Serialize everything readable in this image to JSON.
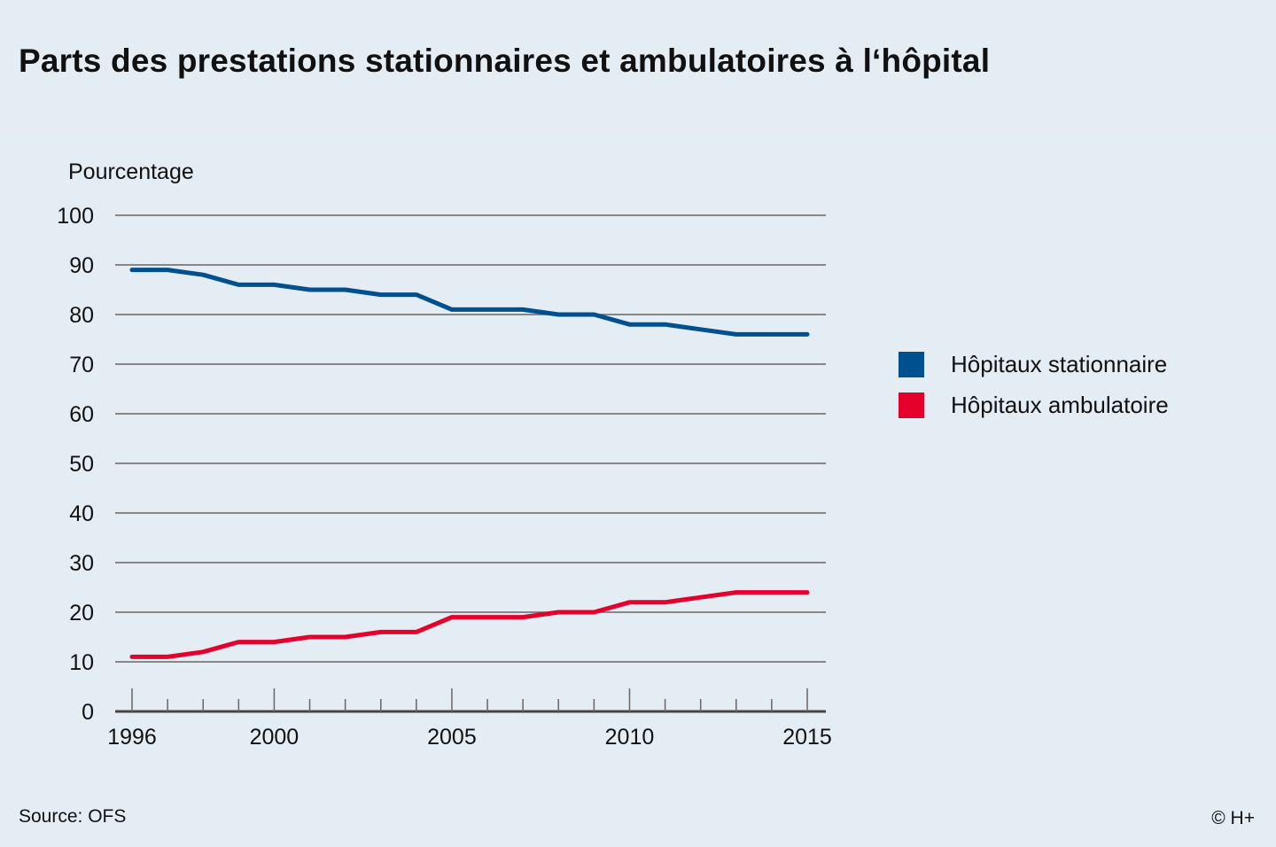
{
  "chart_data": {
    "type": "line",
    "title": "Parts des prestations stationnaires et ambulatoires à l‘hôpital",
    "ylabel": "Pourcentage",
    "xlabel": "",
    "ylim": [
      0,
      100
    ],
    "yticks": [
      0,
      10,
      20,
      30,
      40,
      50,
      60,
      70,
      80,
      90,
      100
    ],
    "xticks": [
      1996,
      2000,
      2005,
      2010,
      2015
    ],
    "grid": true,
    "legend_position": "right",
    "x": [
      1996,
      1997,
      1998,
      1999,
      2000,
      2001,
      2002,
      2003,
      2004,
      2005,
      2006,
      2007,
      2008,
      2009,
      2010,
      2011,
      2012,
      2013,
      2014,
      2015
    ],
    "series": [
      {
        "name": "Hôpitaux stationnaire",
        "color": "#00508f",
        "values": [
          89,
          89,
          88,
          86,
          86,
          85,
          85,
          84,
          84,
          81,
          81,
          81,
          80,
          80,
          78,
          78,
          77,
          76,
          76,
          76
        ]
      },
      {
        "name": "Hôpitaux ambulatoire",
        "color": "#e4002b",
        "values": [
          11,
          11,
          12,
          14,
          14,
          15,
          15,
          16,
          16,
          19,
          19,
          19,
          20,
          20,
          22,
          22,
          23,
          24,
          24,
          24
        ]
      }
    ]
  },
  "footer": {
    "source": "Source: OFS",
    "copyright": "© H+"
  }
}
